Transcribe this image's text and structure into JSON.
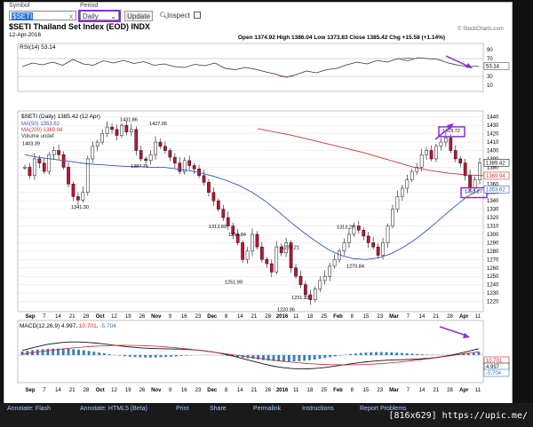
{
  "toolbar": {
    "symbol_label": "Symbol",
    "symbol_value": "$SETI",
    "period_label": "Period",
    "period_value": "Daily",
    "update_label": "Update",
    "inspect_label": "Inspect",
    "clear_icon": "x"
  },
  "header": {
    "title": "$SETI Thailand Set Index (EOD) INDX",
    "credit": "© StockCharts.com",
    "date": "12-Apr-2016",
    "ohlc": "Open 1374.92  High 1386.04  Low 1373.83  Close 1385.42  Chg +15.58 (+1.14%)",
    "chg_up_icon": "▲"
  },
  "chart_data": [
    {
      "type": "line",
      "title": "RSI(14) 53.14",
      "ylim": [
        0,
        100
      ],
      "yticks": [
        10,
        30,
        50,
        70,
        90
      ],
      "current_label": "53.14",
      "series": [
        {
          "name": "RSI(14)",
          "values": [
            52,
            60,
            56,
            62,
            55,
            68,
            58,
            55,
            65,
            60,
            66,
            59,
            63,
            55,
            58,
            52,
            50,
            57,
            54,
            60,
            48,
            45,
            50,
            46,
            40,
            35,
            28,
            34,
            42,
            38,
            45,
            48,
            56,
            62,
            58,
            66,
            62,
            70,
            65,
            72,
            70,
            68,
            60,
            55,
            52,
            53
          ]
        }
      ]
    },
    {
      "type": "candlestick",
      "title": "$SETI (Daily) 1385.42 (12 Apr)",
      "ylim": [
        1210,
        1445
      ],
      "yticks": [
        1220,
        1230,
        1240,
        1250,
        1260,
        1270,
        1280,
        1290,
        1300,
        1310,
        1320,
        1330,
        1340,
        1350,
        1360,
        1370,
        1380,
        1390,
        1400,
        1410,
        1420,
        1430,
        1440
      ],
      "xlabels": [
        "Sep",
        "7",
        "14",
        "21",
        "28",
        "Oct",
        "12",
        "19",
        "26",
        "Nov",
        "9",
        "16",
        "23",
        "Dec",
        "8",
        "14",
        "21",
        "28",
        "2016",
        "11",
        "18",
        "25",
        "Feb",
        "8",
        "15",
        "23",
        "Mar",
        "7",
        "14",
        "21",
        "28",
        "Apr",
        "11"
      ],
      "legend": [
        "$SETI (Daily) 1385.42 (12 Apr)",
        "MA(50) 1353.62",
        "MA(200) 1369.94",
        "Volume undef"
      ],
      "annotations": [
        "1403.39",
        "1431.86",
        "1427.05",
        "1387.75",
        "1341.30",
        "1313.89",
        "1294.84",
        "1251.99",
        "1279.21",
        "1231.32",
        "1220.96",
        "1313.29",
        "1270.84",
        "1419.72",
        "1351.27"
      ],
      "right_labels": [
        "1385.42",
        "1369.94",
        "1353.62"
      ],
      "close": [
        1380,
        1370,
        1390,
        1385,
        1375,
        1395,
        1400,
        1395,
        1380,
        1360,
        1345,
        1341,
        1350,
        1390,
        1405,
        1410,
        1420,
        1428,
        1425,
        1418,
        1430,
        1422,
        1425,
        1400,
        1390,
        1388,
        1395,
        1410,
        1405,
        1400,
        1392,
        1385,
        1375,
        1388,
        1382,
        1378,
        1370,
        1362,
        1350,
        1340,
        1330,
        1320,
        1310,
        1300,
        1290,
        1270,
        1280,
        1300,
        1285,
        1270,
        1265,
        1255,
        1285,
        1278,
        1290,
        1260,
        1250,
        1240,
        1228,
        1222,
        1235,
        1245,
        1250,
        1262,
        1270,
        1280,
        1290,
        1300,
        1310,
        1305,
        1298,
        1290,
        1285,
        1275,
        1290,
        1310,
        1330,
        1345,
        1355,
        1365,
        1375,
        1380,
        1395,
        1400,
        1390,
        1405,
        1410,
        1415,
        1400,
        1390,
        1385,
        1370,
        1355,
        1365,
        1385
      ],
      "ma50": [
        1395,
        1392,
        1390,
        1388,
        1386,
        1384,
        1383,
        1382,
        1381,
        1381,
        1380,
        1380,
        1378,
        1376,
        1373,
        1369,
        1364,
        1358,
        1350,
        1340,
        1328,
        1315,
        1303,
        1292,
        1282,
        1275,
        1271,
        1270,
        1272,
        1277,
        1285,
        1295,
        1307,
        1320,
        1333,
        1345,
        1353
      ],
      "ma200": [
        1426,
        1422,
        1418,
        1413,
        1408,
        1403,
        1398,
        1392,
        1386,
        1380,
        1376,
        1373,
        1371,
        1370
      ]
    },
    {
      "type": "line",
      "title": "MACD(12,26,9) 4.997, 10.701, -5.704",
      "labels": [
        "MACD(12,26,9)",
        "4.997",
        "10.701",
        "-5.704"
      ],
      "right_labels": [
        "10.701",
        "4.997",
        "-5.704"
      ]
    }
  ],
  "footer": {
    "items": [
      "Annotate: Flash",
      "Annotate: HTML5 (Beta)",
      "Print",
      "Share",
      "Permalink",
      "Instructions",
      "Report Problems"
    ],
    "caption": "[816x629] https://upic.me/"
  }
}
